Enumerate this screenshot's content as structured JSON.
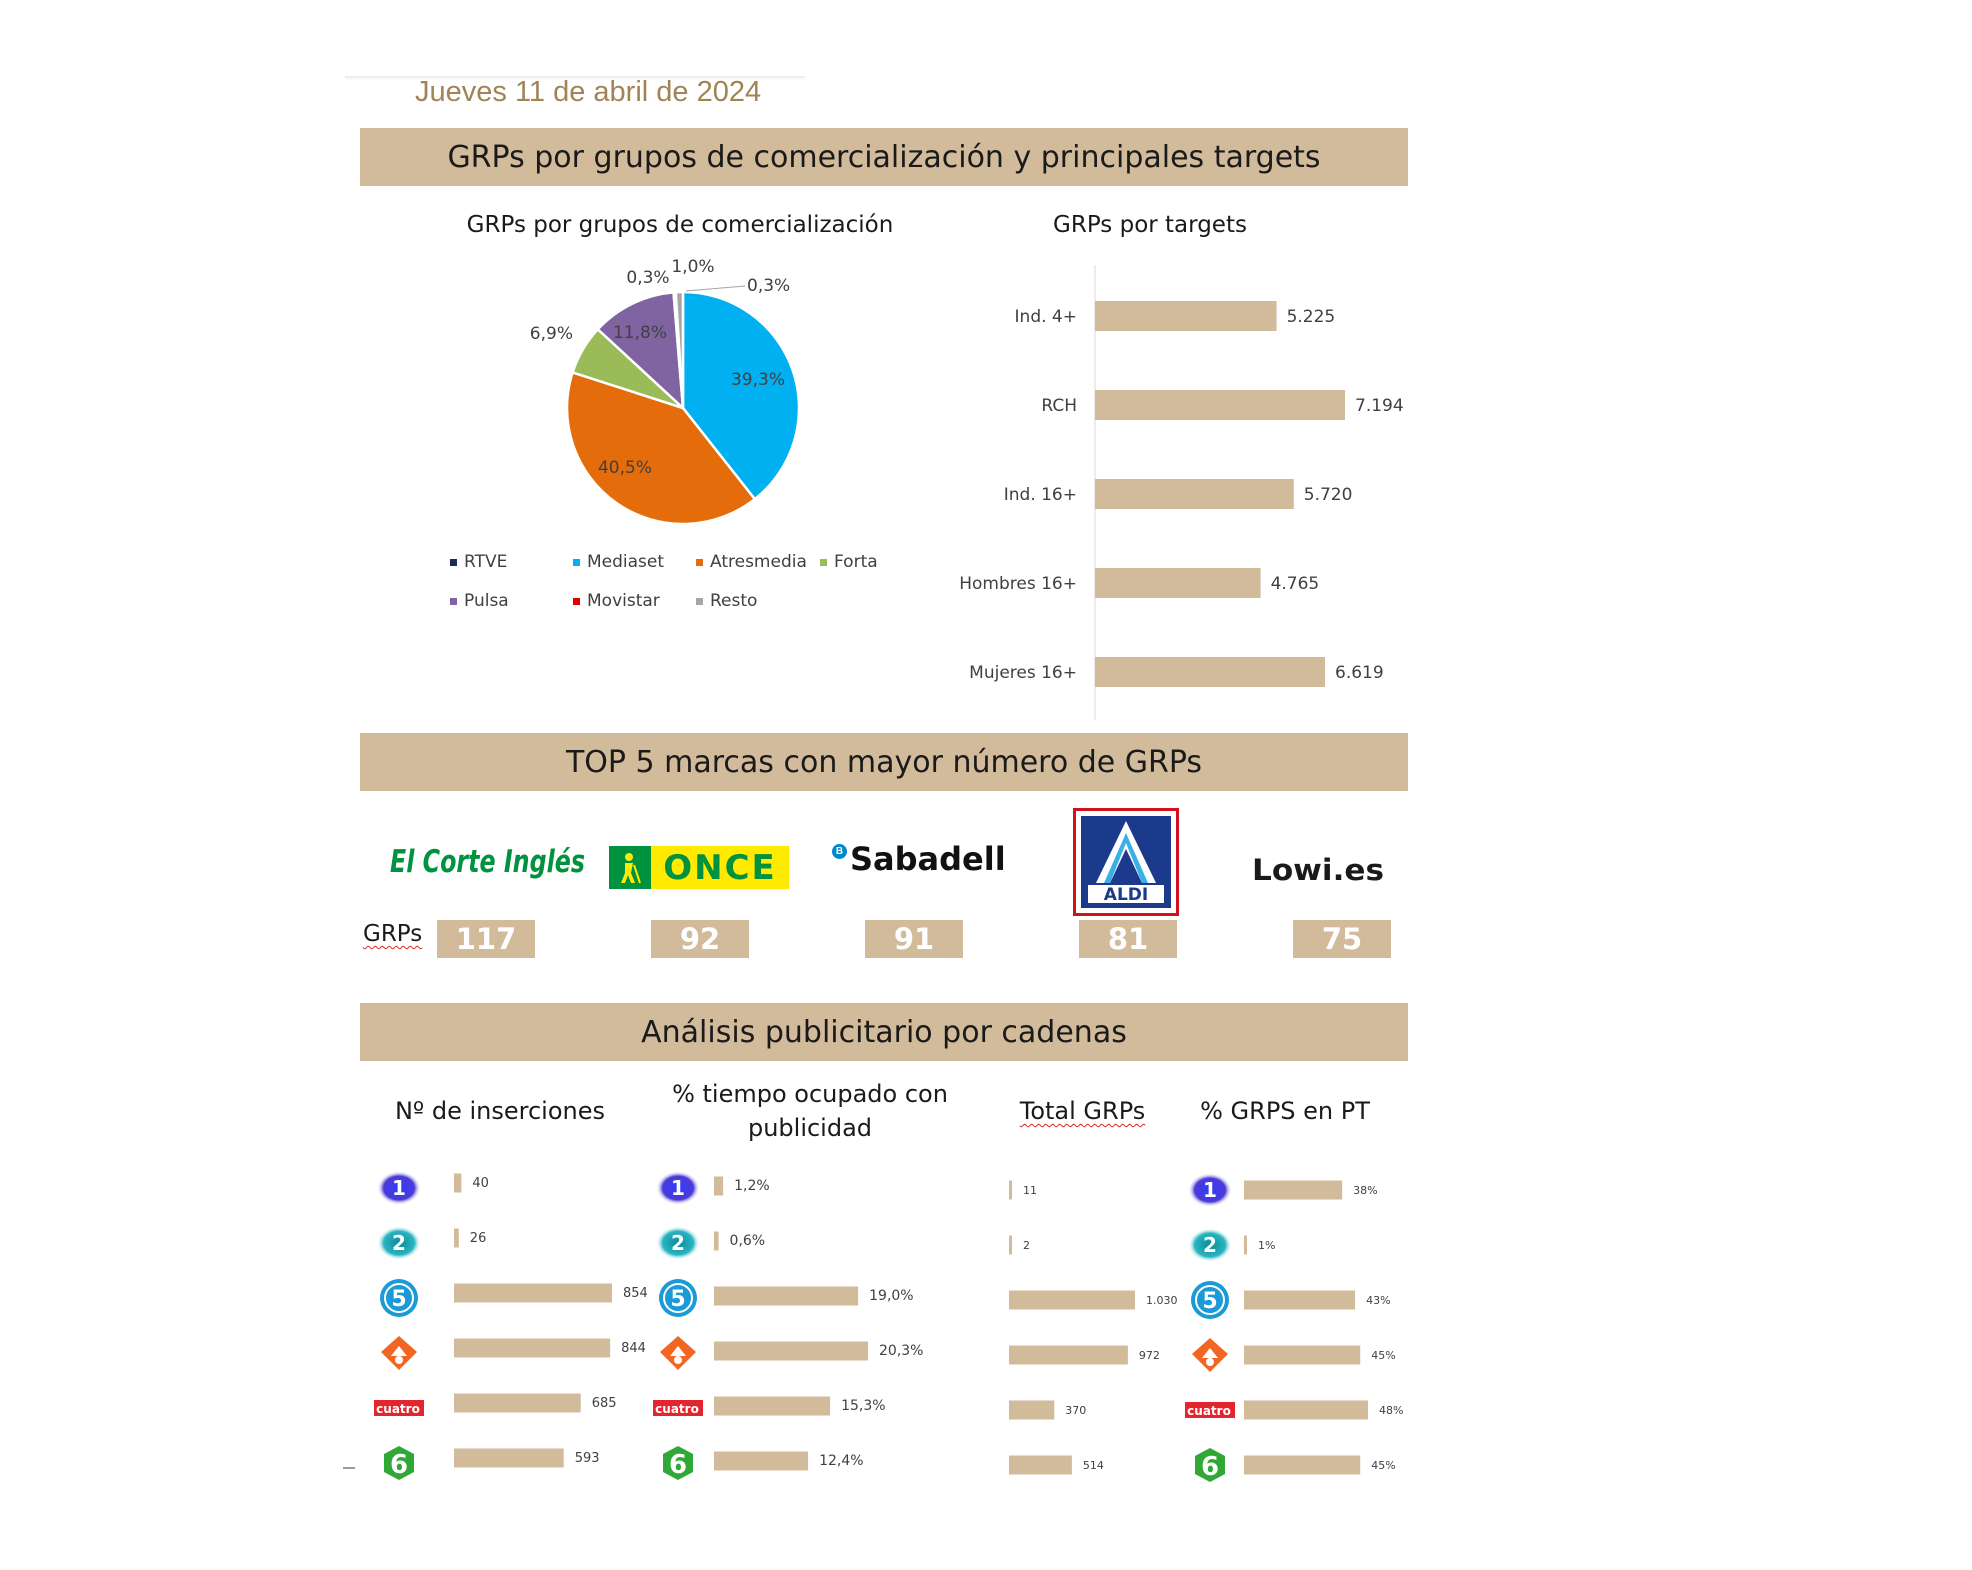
{
  "date_text": "Jueves 11 de abril de 2024",
  "banners": {
    "section1": "GRPs por grupos de comercialización y principales targets",
    "section2": "TOP 5 marcas con mayor número de GRPs",
    "section3": "Análisis publicitario por cadenas"
  },
  "subtitles": {
    "pie": "GRPs por grupos de comercialización",
    "targets": "GRPs por targets"
  },
  "colors": {
    "banner": "#d2bb9a",
    "bar": "#d2bb9a",
    "date": "#a08456"
  },
  "brands": {
    "grps_label": "GRPs",
    "items": [
      {
        "logo_text": "El Corte Inglés",
        "value": "117",
        "logo_icon": "elcorteingles-logo"
      },
      {
        "logo_text": "ONCE",
        "value": "92",
        "logo_icon": "once-logo"
      },
      {
        "logo_text": "Sabadell",
        "value": "91",
        "logo_icon": "sabadell-logo"
      },
      {
        "logo_text": "ALDI",
        "value": "81",
        "logo_icon": "aldi-logo"
      },
      {
        "logo_text": "Lowi.es",
        "value": "75",
        "logo_icon": "lowi-logo"
      }
    ]
  },
  "channel_headers": {
    "insertions": "Nº de inserciones",
    "time_pct_line1": "% tiempo ocupado con",
    "time_pct_line2": "publicidad",
    "total_grps": "Total GRPs",
    "pt_pct": "% GRPS en PT"
  },
  "channels": [
    {
      "icon": "la1-icon",
      "name": "La 1"
    },
    {
      "icon": "la2-icon",
      "name": "La 2"
    },
    {
      "icon": "telecinco-icon",
      "name": "Telecinco"
    },
    {
      "icon": "antena3-icon",
      "name": "Antena 3"
    },
    {
      "icon": "cuatro-icon",
      "name": "cuatro",
      "label": "cuatro"
    },
    {
      "icon": "lasexta-icon",
      "name": "laSexta"
    }
  ],
  "chart_data": [
    {
      "type": "pie",
      "title": "GRPs por grupos de comercialización",
      "slices": [
        {
          "name": "RTVE",
          "value": 0.0,
          "label": "",
          "color": "#1f2a5c"
        },
        {
          "name": "Mediaset",
          "value": 39.3,
          "label": "39,3%",
          "color": "#00b0f0"
        },
        {
          "name": "Atresmedia",
          "value": 40.5,
          "label": "40,5%",
          "color": "#e46c0a"
        },
        {
          "name": "Forta",
          "value": 6.9,
          "label": "6,9%",
          "color": "#9bbb59"
        },
        {
          "name": "Pulsa",
          "value": 11.8,
          "label": "11,8%",
          "color": "#8064a2"
        },
        {
          "name": "Movistar",
          "value": 0.3,
          "label": "0,3%",
          "color": "#e00000"
        },
        {
          "name": "Resto",
          "value": 1.0,
          "label": "1,0%",
          "color": "#a6a6a6"
        }
      ],
      "extra_label": "0,3%",
      "legend": [
        "RTVE",
        "Mediaset",
        "Atresmedia",
        "Forta",
        "Pulsa",
        "Movistar",
        "Resto"
      ]
    },
    {
      "type": "bar",
      "orientation": "horizontal",
      "title": "GRPs por targets",
      "categories": [
        "Ind. 4+",
        "RCH",
        "Ind. 16+",
        "Hombres 16+",
        "Mujeres 16+"
      ],
      "values": [
        5225,
        7194,
        5720,
        4765,
        6619
      ],
      "labels": [
        "5.225",
        "7.194",
        "5.720",
        "4.765",
        "6.619"
      ],
      "xlim": [
        0,
        7194
      ]
    },
    {
      "type": "bar",
      "orientation": "horizontal",
      "title": "Nº de inserciones",
      "categories": [
        "La 1",
        "La 2",
        "Telecinco",
        "Antena 3",
        "Cuatro",
        "laSexta"
      ],
      "values": [
        40,
        26,
        854,
        844,
        685,
        593
      ],
      "labels": [
        "40",
        "26",
        "854",
        "844",
        "685",
        "593"
      ],
      "xlim": [
        0,
        854
      ]
    },
    {
      "type": "bar",
      "orientation": "horizontal",
      "title": "% tiempo ocupado con publicidad",
      "categories": [
        "La 1",
        "La 2",
        "Telecinco",
        "Antena 3",
        "Cuatro",
        "laSexta"
      ],
      "values": [
        1.2,
        0.6,
        19.0,
        20.3,
        15.3,
        12.4
      ],
      "labels": [
        "1,2%",
        "0,6%",
        "19,0%",
        "20,3%",
        "15,3%",
        "12,4%"
      ],
      "xlim": [
        0,
        20.3
      ]
    },
    {
      "type": "bar",
      "orientation": "horizontal",
      "title": "Total GRPs",
      "categories": [
        "La 1",
        "La 2",
        "Telecinco",
        "Antena 3",
        "Cuatro",
        "laSexta"
      ],
      "values": [
        11,
        2,
        1030,
        972,
        370,
        514
      ],
      "labels": [
        "11",
        "2",
        "1.030",
        "972",
        "370",
        "514"
      ],
      "xlim": [
        0,
        1030
      ]
    },
    {
      "type": "bar",
      "orientation": "horizontal",
      "title": "% GRPS en PT",
      "categories": [
        "La 1",
        "La 2",
        "Telecinco",
        "Antena 3",
        "Cuatro",
        "laSexta"
      ],
      "values": [
        38,
        1,
        43,
        45,
        48,
        45
      ],
      "labels": [
        "38%",
        "1%",
        "43%",
        "45%",
        "48%",
        "45%"
      ],
      "xlim": [
        0,
        48
      ]
    }
  ]
}
